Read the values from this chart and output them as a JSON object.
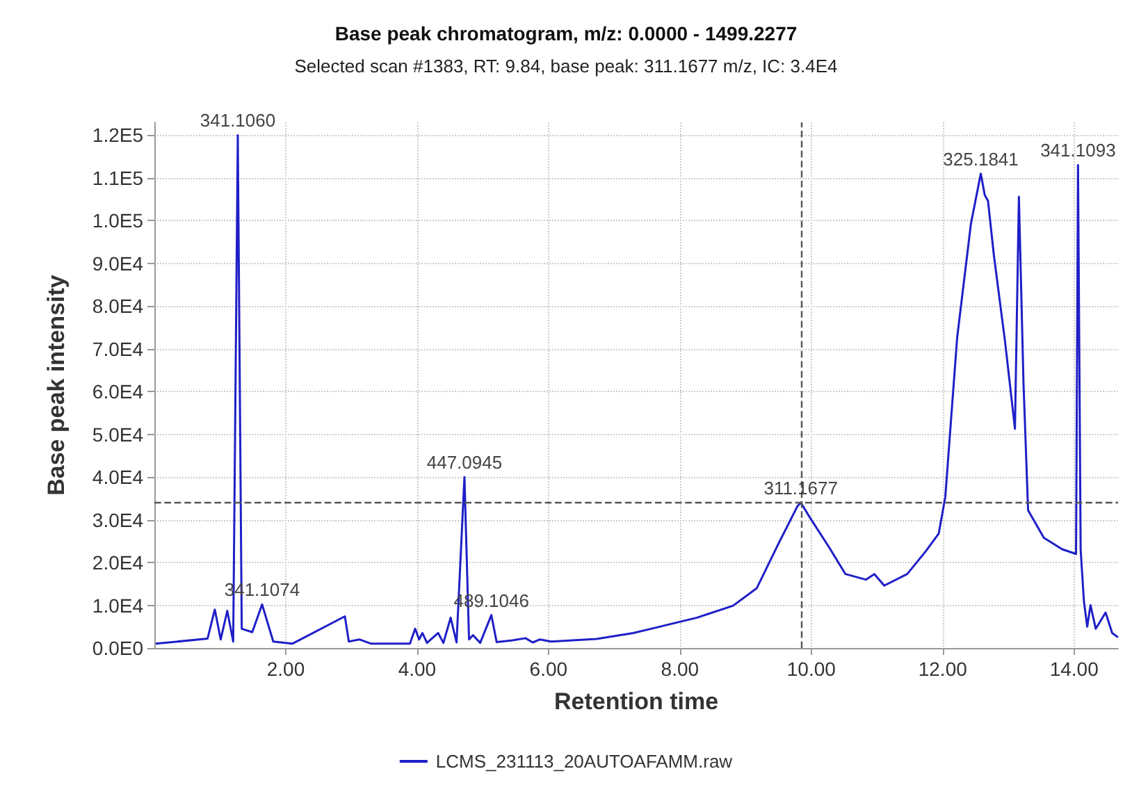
{
  "chart_data": {
    "type": "line",
    "title": "Base peak chromatogram, m/z: 0.0000 - 1499.2277",
    "subtitle": "Selected scan #1383, RT: 9.84, base peak: 311.1677 m/z, IC: 3.4E4",
    "xlabel": "Retention time",
    "ylabel": "Base peak intensity",
    "x": [
      0.02,
      0.81,
      0.92,
      1.01,
      1.11,
      1.2,
      1.27,
      1.33,
      1.49,
      1.64,
      1.81,
      2.1,
      2.9,
      2.96,
      3.12,
      3.3,
      3.89,
      3.97,
      4.03,
      4.08,
      4.15,
      4.32,
      4.4,
      4.51,
      4.6,
      4.72,
      4.79,
      4.85,
      4.96,
      5.13,
      5.21,
      5.45,
      5.65,
      5.76,
      5.87,
      6.04,
      6.73,
      7.29,
      7.56,
      8.26,
      8.81,
      9.17,
      9.51,
      9.79,
      9.84,
      10.0,
      10.27,
      10.52,
      10.83,
      10.96,
      11.11,
      11.46,
      11.74,
      11.94,
      12.04,
      12.22,
      12.43,
      12.58,
      12.64,
      12.69,
      12.78,
      12.95,
      13.1,
      13.16,
      13.23,
      13.3,
      13.54,
      13.82,
      14.03,
      14.06,
      14.1,
      14.15,
      14.2,
      14.25,
      14.33,
      14.48,
      14.58,
      14.67
    ],
    "series": [
      {
        "name": "LCMS_231113_20AUTOAFAMM.raw",
        "color": "#1f1fc8",
        "values": [
          1000,
          2200,
          9000,
          2000,
          8700,
          1500,
          120000,
          4500,
          3700,
          10200,
          1500,
          1000,
          7400,
          1500,
          2000,
          1000,
          1000,
          4500,
          2000,
          3500,
          1200,
          3500,
          1200,
          7100,
          1300,
          40000,
          2000,
          3000,
          1200,
          7700,
          1400,
          1800,
          2300,
          1300,
          2000,
          1500,
          2100,
          3500,
          4500,
          7100,
          9900,
          14000,
          24700,
          33200,
          34000,
          30000,
          23600,
          17300,
          16000,
          17300,
          14600,
          17300,
          22600,
          26800,
          35400,
          72600,
          99300,
          111000,
          106000,
          104600,
          91800,
          71600,
          51300,
          105600,
          62000,
          32200,
          25800,
          23100,
          22000,
          113000,
          23000,
          10900,
          5000,
          10000,
          4500,
          8300,
          3500,
          2500
        ]
      }
    ],
    "xlim": [
      0,
      14.67
    ],
    "xticks": [
      {
        "value": 2,
        "label": "2.00"
      },
      {
        "value": 4,
        "label": "4.00"
      },
      {
        "value": 6,
        "label": "6.00"
      },
      {
        "value": 8,
        "label": "8.00"
      },
      {
        "value": 10,
        "label": "10.00"
      },
      {
        "value": 12,
        "label": "12.00"
      },
      {
        "value": 14,
        "label": "14.00"
      }
    ],
    "ylim": [
      0,
      123000
    ],
    "yticks": [
      {
        "value": 0,
        "label": "0.0E0"
      },
      {
        "value": 10000,
        "label": "1.0E4"
      },
      {
        "value": 20000,
        "label": "2.0E4"
      },
      {
        "value": 30000,
        "label": "3.0E4"
      },
      {
        "value": 40000,
        "label": "4.0E4"
      },
      {
        "value": 50000,
        "label": "5.0E4"
      },
      {
        "value": 60000,
        "label": "6.0E4"
      },
      {
        "value": 70000,
        "label": "7.0E4"
      },
      {
        "value": 80000,
        "label": "8.0E4"
      },
      {
        "value": 90000,
        "label": "9.0E4"
      },
      {
        "value": 100000,
        "label": "1.0E5"
      },
      {
        "value": 110000,
        "label": "1.1E5"
      },
      {
        "value": 120000,
        "label": "1.2E5"
      }
    ],
    "annotations": [
      {
        "text": "341.1060",
        "x": 1.27,
        "y": 120000
      },
      {
        "text": "341.1074",
        "x": 1.64,
        "y": 10200
      },
      {
        "text": "447.0945",
        "x": 4.72,
        "y": 40000
      },
      {
        "text": "489.1046",
        "x": 5.13,
        "y": 7700
      },
      {
        "text": "311.1677",
        "x": 9.84,
        "y": 34000
      },
      {
        "text": "325.1841",
        "x": 12.58,
        "y": 111000
      },
      {
        "text": "341.1093",
        "x": 14.06,
        "y": 113000
      }
    ],
    "ref_lines": [
      {
        "axis": "x",
        "value": 9.84,
        "color": "#555555",
        "line_style": "dashed"
      },
      {
        "axis": "y",
        "value": 34000,
        "color": "#555555",
        "line_style": "dashed"
      }
    ],
    "grid": true,
    "legend": "bottom",
    "marker": "none",
    "line_style": "solid"
  }
}
